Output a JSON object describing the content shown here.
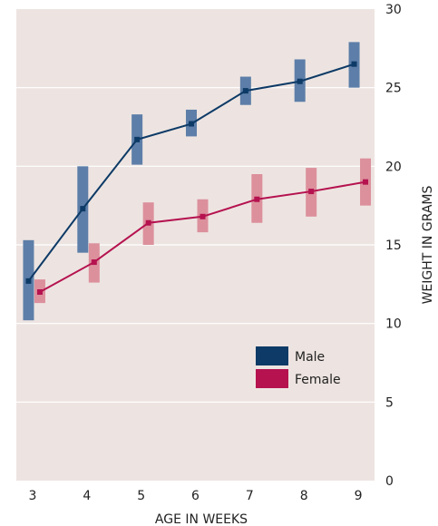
{
  "chart_data": {
    "type": "line",
    "x": [
      3,
      4,
      5,
      6,
      7,
      8,
      9
    ],
    "xlabel": "AGE IN WEEKS",
    "ylabel": "WEIGHT IN GRAMS",
    "ylim": [
      0,
      30
    ],
    "xlim": [
      2.7,
      9.3
    ],
    "yticks": [
      0,
      5,
      10,
      15,
      20,
      25,
      30
    ],
    "xticks": [
      3,
      4,
      5,
      6,
      7,
      8,
      9
    ],
    "grid": "horizontal",
    "legend_position": "lower-right",
    "series": [
      {
        "name": "Male",
        "color": "#0d3a66",
        "bar_color": "#5d7ea8",
        "values": [
          12.7,
          17.3,
          21.7,
          22.7,
          24.8,
          25.4,
          26.5
        ],
        "low": [
          10.2,
          14.5,
          20.1,
          21.9,
          23.9,
          24.1,
          25.0
        ],
        "high": [
          15.3,
          20.0,
          23.3,
          23.6,
          25.7,
          26.8,
          27.9
        ]
      },
      {
        "name": "Female",
        "color": "#b5124f",
        "bar_color": "#dc909c",
        "values": [
          12.0,
          13.9,
          16.4,
          16.8,
          17.9,
          18.4,
          19.0
        ],
        "low": [
          11.3,
          12.6,
          15.0,
          15.8,
          16.4,
          16.8,
          17.5
        ],
        "high": [
          12.8,
          15.1,
          17.7,
          17.9,
          19.5,
          19.9,
          20.5
        ]
      }
    ]
  },
  "colors": {
    "plot_background": "#ede4e1",
    "gridline": "#ffffff"
  }
}
